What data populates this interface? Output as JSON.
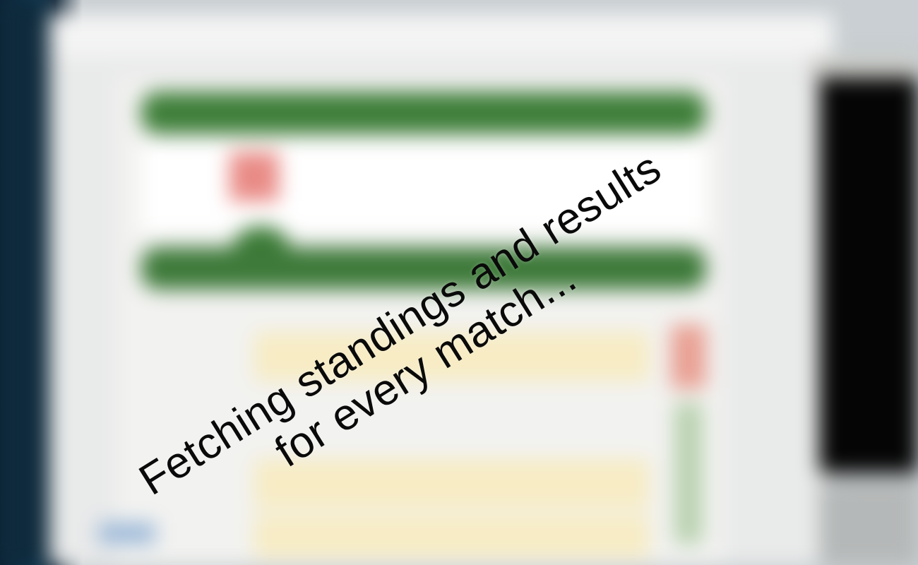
{
  "overlay": {
    "line1": "Fetching standings and results",
    "line2": "for every match..."
  },
  "colors": {
    "header_green": "#3f7f3a",
    "highlight_red": "#e98b86",
    "row_yellow": "#f7ecc4",
    "panel_black": "#050505",
    "text": "#0a0a0a"
  }
}
